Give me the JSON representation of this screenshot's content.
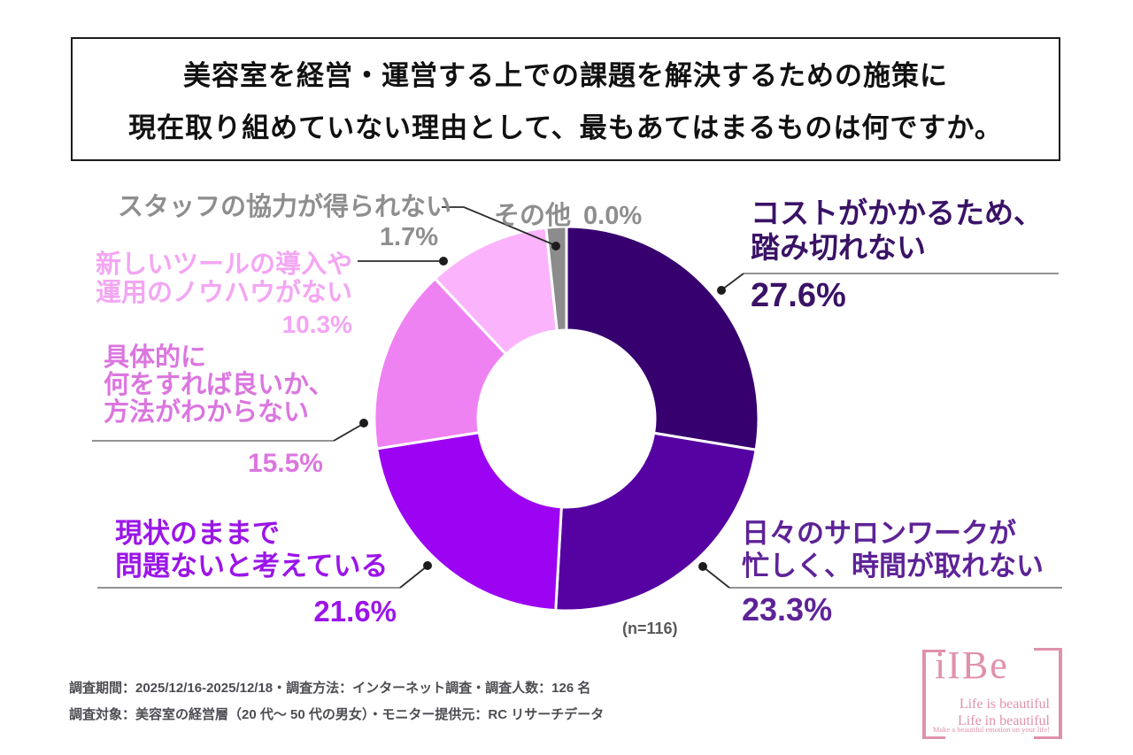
{
  "title": {
    "line1": "美容室を経営・運営する上での課題を解決するための施策に",
    "line2": "現在取り組めていない理由として、最もあてはまるものは何ですか。"
  },
  "chart_data": {
    "type": "pie",
    "subtype": "donut",
    "title": "美容室を経営・運営する上での課題を解決するための施策に現在取り組めていない理由として、最もあてはまるものは何ですか。",
    "sample_note": "(n=116)",
    "start_angle_deg": 0,
    "direction": "clockwise",
    "donut_hole_ratio": 0.46,
    "segments": [
      {
        "label": "コストがかかるため、踏み切れない",
        "value": 27.6,
        "color": "#36016F"
      },
      {
        "label": "日々のサロンワークが忙しく、時間が取れない",
        "value": 23.3,
        "color": "#5602A2"
      },
      {
        "label": "現状のままで問題ないと考えている",
        "value": 21.6,
        "color": "#9C03F2"
      },
      {
        "label": "具体的に何をすれば良いか、方法がわからない",
        "value": 15.5,
        "color": "#EF82F3"
      },
      {
        "label": "新しいツールの導入や運用のノウハウがない",
        "value": 10.3,
        "color": "#FBB4FB"
      },
      {
        "label": "スタッフの協力が得られない",
        "value": 1.7,
        "color": "#8C8C8C"
      },
      {
        "label": "その他",
        "value": 0.0,
        "color": "#8C8C8C"
      }
    ]
  },
  "callouts": [
    {
      "id": "cost",
      "lines": [
        "コストがかかるため、",
        "踏み切れない"
      ],
      "pct": "27.6%",
      "color": "#3A1266"
    },
    {
      "id": "salonwork",
      "lines": [
        "日々のサロンワークが",
        "忙しく、時間が取れない"
      ],
      "pct": "23.3%",
      "color": "#5E2397"
    },
    {
      "id": "statusquo",
      "lines": [
        "現状のままで",
        "問題ないと考えている"
      ],
      "pct": "21.6%",
      "color": "#9B15E8"
    },
    {
      "id": "method",
      "lines": [
        "具体的に",
        "何をすれば良いか、",
        "方法がわからない"
      ],
      "pct": "15.5%",
      "color": "#DB76DF"
    },
    {
      "id": "knowhow",
      "lines": [
        "新しいツールの導入や",
        "運用のノウハウがない"
      ],
      "pct": "10.3%",
      "color": "#F3A6F3"
    },
    {
      "id": "staff",
      "lines": [
        "スタッフの協力が得られない"
      ],
      "pct": "1.7%",
      "color": "#8E8E8E"
    },
    {
      "id": "other",
      "lines": [
        "その他"
      ],
      "pct": "0.0%",
      "color": "#8E8E8E"
    }
  ],
  "sample_note": "(n=116)",
  "footer": {
    "line1": "調査期間：2025/12/16-2025/12/18・調査方法：インターネット調査・調査人数：126 名",
    "line2": "調査対象：美容室の経営層（20 代〜 50 代の男女）・モニター提供元：RC リサーチデータ"
  },
  "logo": {
    "name": "iIBe",
    "tagline1": "Life is beautiful",
    "tagline2": "Life in beautiful",
    "tagline3": "Make a beautiful emotion on your life!",
    "color": "#E091AC"
  }
}
